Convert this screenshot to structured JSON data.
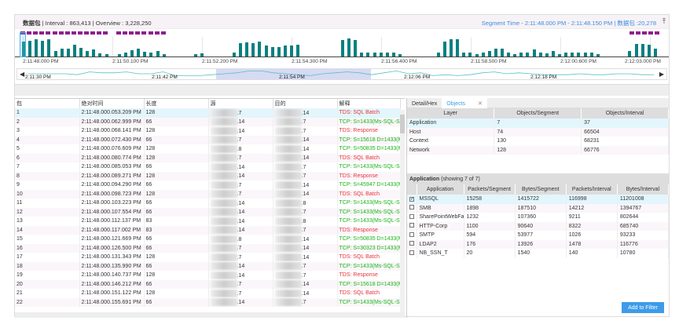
{
  "header": {
    "title": "数据包",
    "interval": "| Interval : 863,413 | Overview : 3,228,250",
    "segment": "Segment Time - 2:11:48.000 PM - 2:11:48.150 PM | 数据包 :20,278"
  },
  "colors": {
    "bar": "#0a8080",
    "marker": "#8e1f8e",
    "accent": "#3b9fe5"
  },
  "chart_data": {
    "type": "bar",
    "x_ticks": [
      "2:11:48.000 PM",
      "2:11:50.100 PM",
      "2:11:52.200 PM",
      "2:11:54.300 PM",
      "2:11:56.400 PM",
      "2:11:58.500 PM",
      "2:12:00.600 PM",
      "2:12:03.000 PM"
    ],
    "values": [
      55,
      58,
      65,
      58,
      65,
      20,
      28,
      30,
      45,
      32,
      20,
      25,
      12,
      8,
      0,
      8,
      15,
      22,
      28,
      18,
      15,
      20,
      10,
      0,
      0,
      0,
      0,
      10,
      13,
      0,
      0,
      0,
      0,
      15,
      50,
      52,
      50,
      55,
      40,
      35,
      35,
      40,
      42,
      45,
      0,
      0,
      0,
      0,
      0,
      0,
      60,
      68,
      62,
      15,
      15,
      15,
      15,
      15,
      15,
      8,
      0,
      0,
      0,
      0,
      0,
      15,
      55,
      65,
      65,
      15,
      15,
      8,
      15,
      20,
      30,
      28,
      15,
      8,
      15,
      15,
      25,
      15,
      12,
      20,
      10,
      15,
      15,
      15,
      15,
      15,
      8,
      0,
      0,
      0,
      0,
      20,
      48,
      48,
      45,
      28
    ],
    "overview_ticks": [
      "2:11:30 PM",
      "2:11:42 PM",
      "2:11:54 PM",
      "2:12:06 PM",
      "2:12:18 PM"
    ],
    "overview_values": [
      5,
      5,
      5,
      5,
      4,
      7,
      6,
      6,
      7,
      5,
      5,
      7,
      3,
      3,
      3,
      4,
      5,
      6,
      8,
      8,
      6,
      5,
      4,
      3,
      5,
      6,
      7,
      6,
      4,
      6,
      8,
      5,
      6,
      3,
      4,
      3,
      4,
      6,
      7,
      5,
      6,
      5,
      4,
      4,
      4,
      5,
      4,
      4,
      5,
      5,
      4,
      4
    ]
  },
  "packets": {
    "columns": [
      "包",
      "绝对时间",
      "长度",
      "源",
      "目的",
      "解释"
    ],
    "rows": [
      [
        "1",
        "2:11:48.000.053.209 PM",
        "128",
        ".7",
        ".14",
        "TDS: SQL Batch"
      ],
      [
        "2",
        "2:11:48.000.062.999 PM",
        "66",
        ".14",
        ".7",
        "TCP: S=1433(Ms-SQL-Se"
      ],
      [
        "3",
        "2:11:48.000.068.141 PM",
        "128",
        ".14",
        ".7",
        "TDS: Response"
      ],
      [
        "4",
        "2:11:48.000.072.430 PM",
        "66",
        ".7",
        ".14",
        "TCP: S=15618 D=1433(M"
      ],
      [
        "5",
        "2:11:48.000.076.609 PM",
        "128",
        ".8",
        ".14",
        "TCP: S=50835 D=1433(M"
      ],
      [
        "6",
        "2:11:48.000.080.774 PM",
        "128",
        ".7",
        ".14",
        "TDS: SQL Batch"
      ],
      [
        "7",
        "2:11:48.000.085.053 PM",
        "66",
        ".14",
        ".7",
        "TCP: S=1433(Ms-SQL-Se"
      ],
      [
        "8",
        "2:11:48.000.089.271 PM",
        "128",
        ".14",
        ".7",
        "TDS: Response"
      ],
      [
        "9",
        "2:11:48.000.094.290 PM",
        "66",
        ".7",
        ".14",
        "TCP: S=45947 D=1433(M"
      ],
      [
        "10",
        "2:11:48.000.098.723 PM",
        "128",
        ".7",
        ".14",
        "TDS: SQL Batch"
      ],
      [
        "11",
        "2:11:48.000.103.223 PM",
        "66",
        ".14",
        ".8",
        "TCP: S=1433(Ms-SQL-Se"
      ],
      [
        "12",
        "2:11:48.000.107.554 PM",
        "66",
        ".14",
        ".7",
        "TCP: S=1433(Ms-SQL-Se"
      ],
      [
        "13",
        "2:11:48.000.112.137 PM",
        "83",
        ".14",
        ".8",
        "TCP: S=1433(Ms-SQL-Se"
      ],
      [
        "14",
        "2:11:48.000.117.002 PM",
        "83",
        ".14",
        ".7",
        "TDS: Response"
      ],
      [
        "15",
        "2:11:48.000.121.669 PM",
        "66",
        ".8",
        ".14",
        "TCP: S=50835 D=1433(M"
      ],
      [
        "16",
        "2:11:48.000.126.500 PM",
        "66",
        ".7",
        ".14",
        "TCP: S=30323 D=1433(M"
      ],
      [
        "17",
        "2:11:48.000.131.343 PM",
        "128",
        ".7",
        ".14",
        "TDS: SQL Batch"
      ],
      [
        "18",
        "2:11:48.000.135.990 PM",
        "66",
        ".14",
        ".7",
        "TCP: S=1433(Ms-SQL-Se"
      ],
      [
        "19",
        "2:11:48.000.140.737 PM",
        "128",
        ".14",
        ".7",
        "TDS: Response"
      ],
      [
        "20",
        "2:11:48.000.146.212 PM",
        "66",
        ".7",
        ".14",
        "TCP: S=15618 D=1433(M"
      ],
      [
        "21",
        "2:11:48.000.151.122 PM",
        "128",
        ".7",
        ".14",
        "TDS: SQL Batch"
      ],
      [
        "22",
        "2:11:48.000.155.691 PM",
        "66",
        ".14",
        ".7",
        "TCP: S=1433(Ms-SQL-Se"
      ]
    ]
  },
  "tabs": [
    "Detail/Hex",
    "Objects"
  ],
  "objects": {
    "columns": [
      "Layer",
      "Objects/Segment",
      "Objects/Interval"
    ],
    "rows": [
      [
        "Application",
        "7",
        "37"
      ],
      [
        "Host",
        "74",
        "66504"
      ],
      [
        "Context",
        "130",
        "68231"
      ],
      [
        "Network",
        "128",
        "66776"
      ]
    ]
  },
  "apps": {
    "title": "Application",
    "showing": "(showing 7 of 7)",
    "columns": [
      "Application",
      "Packets/Segment",
      "Bytes/Segment",
      "Packets/Interval",
      "Bytes/Interval"
    ],
    "rows": [
      [
        "MSSQL",
        "15258",
        "1415722",
        "116998",
        "11201008",
        true
      ],
      [
        "SMB",
        "1898",
        "187510",
        "14212",
        "1394767",
        false
      ],
      [
        "SharePointWebFar",
        "1232",
        "107360",
        "9211",
        "802644",
        false
      ],
      [
        "HTTP-Corp",
        "1100",
        "90640",
        "8322",
        "685740",
        false
      ],
      [
        "SMTP",
        "594",
        "53977",
        "1026",
        "93233",
        false
      ],
      [
        "LDAP2",
        "176",
        "13926",
        "1478",
        "116776",
        false
      ],
      [
        "NB_SSN_T",
        "20",
        "1540",
        "140",
        "10780",
        false
      ]
    ]
  },
  "add_filter": "Add to Filter"
}
